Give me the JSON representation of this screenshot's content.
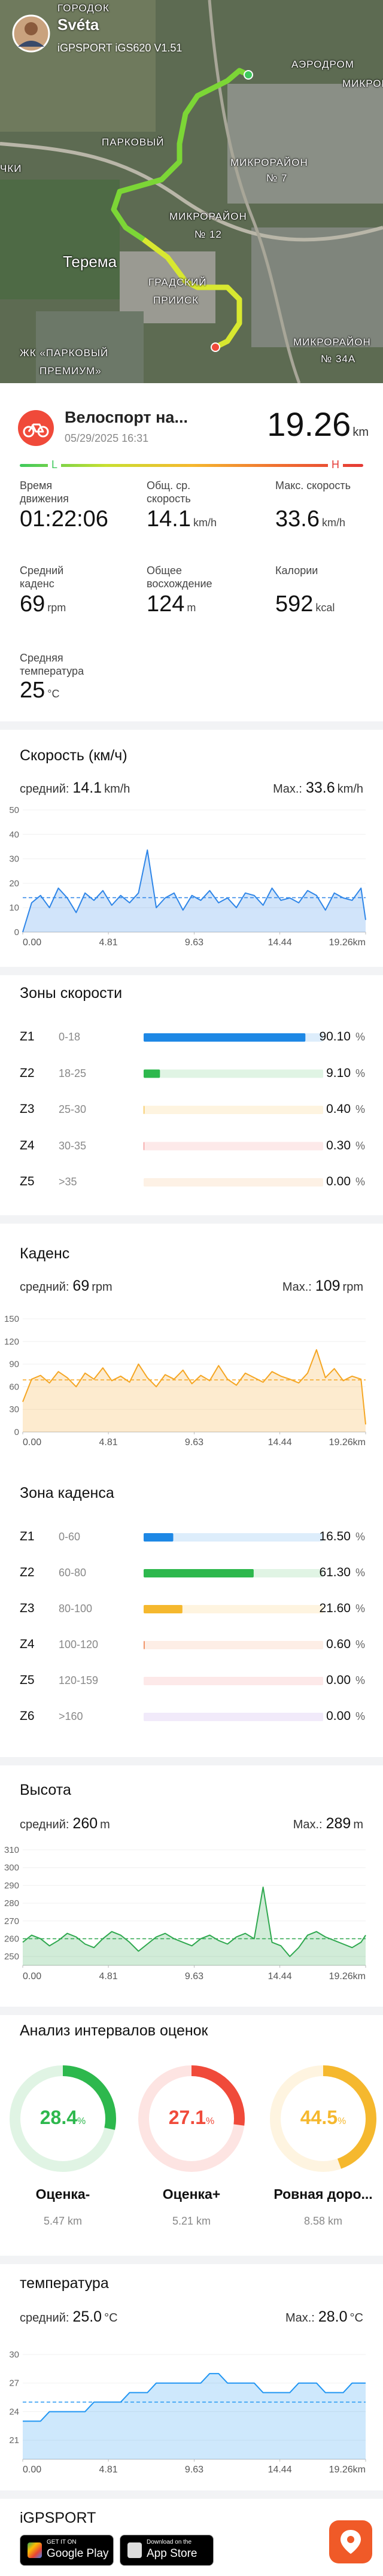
{
  "map": {
    "rider": "Svéta",
    "device": "iGPSPORT iGS620 V1.51",
    "labels": [
      "ГОРОДОК",
      "АЭРОДРОМ",
      "МИКРОР",
      "ПАРКОВЫЙ",
      "МИКРОРАЙОН",
      "№ 7",
      "ЧКИ",
      "МИКРОРАЙОН",
      "№ 12",
      "Терема",
      "ГРАДСКИЙ",
      "ПРИИСК",
      "ЖК «ПАРКОВЫЙ",
      "ПРЕМИУМ»",
      "МИКРОРАЙОН",
      "№ 34А"
    ]
  },
  "activity": {
    "title": "Велоспорт на...",
    "date": "05/29/2025 16:31",
    "distance": "19.26",
    "unit": "km",
    "low": "L",
    "high": "H"
  },
  "stats": [
    {
      "label": "Время движения",
      "value": "01:22:06"
    },
    {
      "label": "Общ. ср. скорость",
      "value": "14.1",
      "unit": "km/h"
    },
    {
      "label": "Макс. скорость",
      "value": "33.6",
      "unit": "km/h"
    },
    {
      "label": "Средний каденс",
      "value": "69",
      "unit": "rpm"
    },
    {
      "label": "Общее восхождение",
      "value": "124",
      "unit": "m"
    },
    {
      "label": "Калории",
      "value": "592",
      "unit": "kcal"
    },
    {
      "label": "Средняя температура",
      "value": "25",
      "unit": "°C"
    }
  ],
  "chart_data": [
    {
      "type": "line",
      "title": "Скорость (км/ч)",
      "color": "#2f86e8",
      "avg": {
        "prefix": "средний:",
        "value": 14.1,
        "label": "14.1",
        "unit": "km/h"
      },
      "max": {
        "prefix": "Max.:",
        "label": "33.6",
        "unit": "km/h"
      },
      "x": [
        0,
        0.5,
        1,
        1.5,
        2,
        2.5,
        3,
        3.5,
        4,
        4.5,
        5,
        5.5,
        6,
        6.5,
        7,
        7.5,
        8,
        8.5,
        9,
        9.5,
        10,
        10.5,
        11,
        11.5,
        12,
        12.5,
        13,
        13.5,
        14,
        14.5,
        15,
        15.5,
        16,
        16.5,
        17,
        17.5,
        18,
        18.5,
        19,
        19.26
      ],
      "values": [
        0,
        12,
        15,
        10,
        18,
        14,
        8,
        16,
        13,
        17,
        11,
        15,
        12,
        16,
        33.6,
        10,
        14,
        16,
        9,
        15,
        13,
        17,
        12,
        14,
        10,
        16,
        15,
        11,
        18,
        13,
        14,
        12,
        17,
        15,
        9,
        16,
        14,
        13,
        18,
        5
      ],
      "xlim": [
        0,
        19.26
      ],
      "xticks": [
        {
          "value": 0,
          "label": "0.00"
        },
        4.81,
        9.63,
        14.44,
        {
          "value": 19.26,
          "label": "19.26km"
        }
      ],
      "ylim": [
        0,
        50
      ],
      "yticks": [
        0,
        10,
        20,
        30,
        40,
        50
      ]
    },
    {
      "type": "line",
      "title": "Каденс",
      "color": "#f5a623",
      "avg": {
        "prefix": "средний:",
        "value": 69,
        "label": "69",
        "unit": "rpm"
      },
      "max": {
        "prefix": "Max.:",
        "label": "109",
        "unit": "rpm"
      },
      "x": [
        0,
        0.5,
        1,
        1.5,
        2,
        2.5,
        3,
        3.5,
        4,
        4.5,
        5,
        5.5,
        6,
        6.5,
        7,
        7.5,
        8,
        8.5,
        9,
        9.5,
        10,
        10.5,
        11,
        11.5,
        12,
        12.5,
        13,
        13.5,
        14,
        14.5,
        15,
        15.5,
        16,
        16.5,
        17,
        17.5,
        18,
        18.5,
        19,
        19.26
      ],
      "values": [
        40,
        70,
        75,
        65,
        80,
        72,
        60,
        78,
        70,
        85,
        68,
        74,
        66,
        90,
        72,
        60,
        76,
        70,
        82,
        64,
        75,
        68,
        88,
        70,
        62,
        78,
        72,
        66,
        80,
        74,
        70,
        65,
        78,
        109,
        72,
        84,
        68,
        74,
        70,
        10
      ],
      "xlim": [
        0,
        19.26
      ],
      "xticks": [
        {
          "value": 0,
          "label": "0.00"
        },
        4.81,
        9.63,
        14.44,
        {
          "value": 19.26,
          "label": "19.26km"
        }
      ],
      "ylim": [
        0,
        150
      ],
      "yticks": [
        0,
        30,
        60,
        90,
        120,
        150
      ]
    },
    {
      "type": "line",
      "title": "Высота",
      "color": "#2fa84f",
      "avg": {
        "prefix": "средний:",
        "value": 260,
        "label": "260",
        "unit": "m"
      },
      "max": {
        "prefix": "Max.:",
        "label": "289",
        "unit": "m"
      },
      "x": [
        0,
        0.5,
        1,
        1.5,
        2,
        2.5,
        3,
        3.5,
        4,
        4.5,
        5,
        5.5,
        6,
        6.5,
        7,
        7.5,
        8,
        8.5,
        9,
        9.5,
        10,
        10.5,
        11,
        11.5,
        12,
        12.5,
        13,
        13.5,
        14,
        14.5,
        15,
        15.5,
        16,
        16.5,
        17,
        17.5,
        18,
        18.5,
        19,
        19.26
      ],
      "values": [
        258,
        262,
        260,
        256,
        259,
        263,
        261,
        257,
        255,
        260,
        264,
        262,
        258,
        253,
        257,
        261,
        263,
        260,
        258,
        256,
        260,
        262,
        259,
        257,
        261,
        263,
        260,
        289,
        258,
        256,
        250,
        255,
        262,
        264,
        261,
        259,
        257,
        255,
        258,
        262
      ],
      "xlim": [
        0,
        19.26
      ],
      "xticks": [
        {
          "value": 0,
          "label": "0.00"
        },
        4.81,
        9.63,
        14.44,
        {
          "value": 19.26,
          "label": "19.26km"
        }
      ],
      "ylim": [
        245,
        310
      ],
      "yticks": [
        250,
        260,
        270,
        280,
        290,
        300,
        310
      ]
    },
    {
      "type": "line",
      "title": "температура",
      "color": "#2196f3",
      "avg": {
        "prefix": "средний:",
        "value": 25,
        "label": "25.0",
        "unit": "°C"
      },
      "max": {
        "prefix": "Max.:",
        "label": "28.0",
        "unit": "°C"
      },
      "x": [
        0,
        0.5,
        1,
        1.5,
        2,
        2.5,
        3,
        3.5,
        4,
        4.5,
        5,
        5.5,
        6,
        6.5,
        7,
        7.5,
        8,
        8.5,
        9,
        9.5,
        10,
        10.5,
        11,
        11.5,
        12,
        12.5,
        13,
        13.5,
        14,
        14.5,
        15,
        15.5,
        16,
        16.5,
        17,
        17.5,
        18,
        18.5,
        19,
        19.26
      ],
      "values": [
        23,
        23,
        23,
        24,
        24,
        24,
        24,
        24,
        25,
        25,
        25,
        25,
        26,
        26,
        26,
        27,
        27,
        27,
        27,
        27,
        27,
        28,
        28,
        27,
        27,
        27,
        27,
        26,
        26,
        26,
        26,
        27,
        27,
        27,
        26,
        26,
        26,
        27,
        27,
        27
      ],
      "xlim": [
        0,
        19.26
      ],
      "xticks": [
        {
          "value": 0,
          "label": "0.00"
        },
        4.81,
        9.63,
        14.44,
        {
          "value": 19.26,
          "label": "19.26km"
        }
      ],
      "ylim": [
        19,
        30
      ],
      "yticks": [
        21,
        24,
        27,
        30
      ]
    }
  ],
  "speed_zones": {
    "title": "Зоны скорости",
    "unit": "%",
    "zones": [
      {
        "zone": "Z1",
        "range": "0-18",
        "value": 90.1,
        "value_label": "90.10",
        "color": "#1e88e5"
      },
      {
        "zone": "Z2",
        "range": "18-25",
        "value": 9.1,
        "value_label": "9.10",
        "color": "#2db84d"
      },
      {
        "zone": "Z3",
        "range": "25-30",
        "value": 0.4,
        "value_label": "0.40",
        "color": "#f5b82e"
      },
      {
        "zone": "Z4",
        "range": "30-35",
        "value": 0.3,
        "value_label": "0.30",
        "color": "#f06a6a"
      },
      {
        "zone": "Z5",
        "range": ">35",
        "value": 0,
        "value_label": "0.00",
        "color": "#f0a050"
      }
    ]
  },
  "cadence_zones": {
    "title": "Зона каденса",
    "unit": "%",
    "zones": [
      {
        "zone": "Z1",
        "range": "0-60",
        "value": 16.5,
        "value_label": "16.50",
        "color": "#1e88e5"
      },
      {
        "zone": "Z2",
        "range": "60-80",
        "value": 61.3,
        "value_label": "61.30",
        "color": "#2db84d"
      },
      {
        "zone": "Z3",
        "range": "80-100",
        "value": 21.6,
        "value_label": "21.60",
        "color": "#f5b82e"
      },
      {
        "zone": "Z4",
        "range": "100-120",
        "value": 0.6,
        "value_label": "0.60",
        "color": "#f08a5a"
      },
      {
        "zone": "Z5",
        "range": "120-159",
        "value": 0,
        "value_label": "0.00",
        "color": "#f06a6a"
      },
      {
        "zone": "Z6",
        "range": ">160",
        "value": 0,
        "value_label": "0.00",
        "color": "#a070e0"
      }
    ]
  },
  "intervals": {
    "title": "Анализ интервалов оценок",
    "unit": "%",
    "items": [
      {
        "value": 28.4,
        "label": "Оценка-",
        "distance": "5.47 km",
        "color": "#2db84d"
      },
      {
        "value": 27.1,
        "label": "Оценка+",
        "distance": "5.21 km",
        "color": "#f04a3a"
      },
      {
        "value": 44.5,
        "label": "Ровная доро...",
        "distance": "8.58 km",
        "color": "#f5b82e"
      }
    ]
  },
  "footer": {
    "brand": "iGPSPORT",
    "google_small": "GET IT ON",
    "google": "Google Play",
    "apple_small": "Download on the",
    "apple": "App Store"
  }
}
